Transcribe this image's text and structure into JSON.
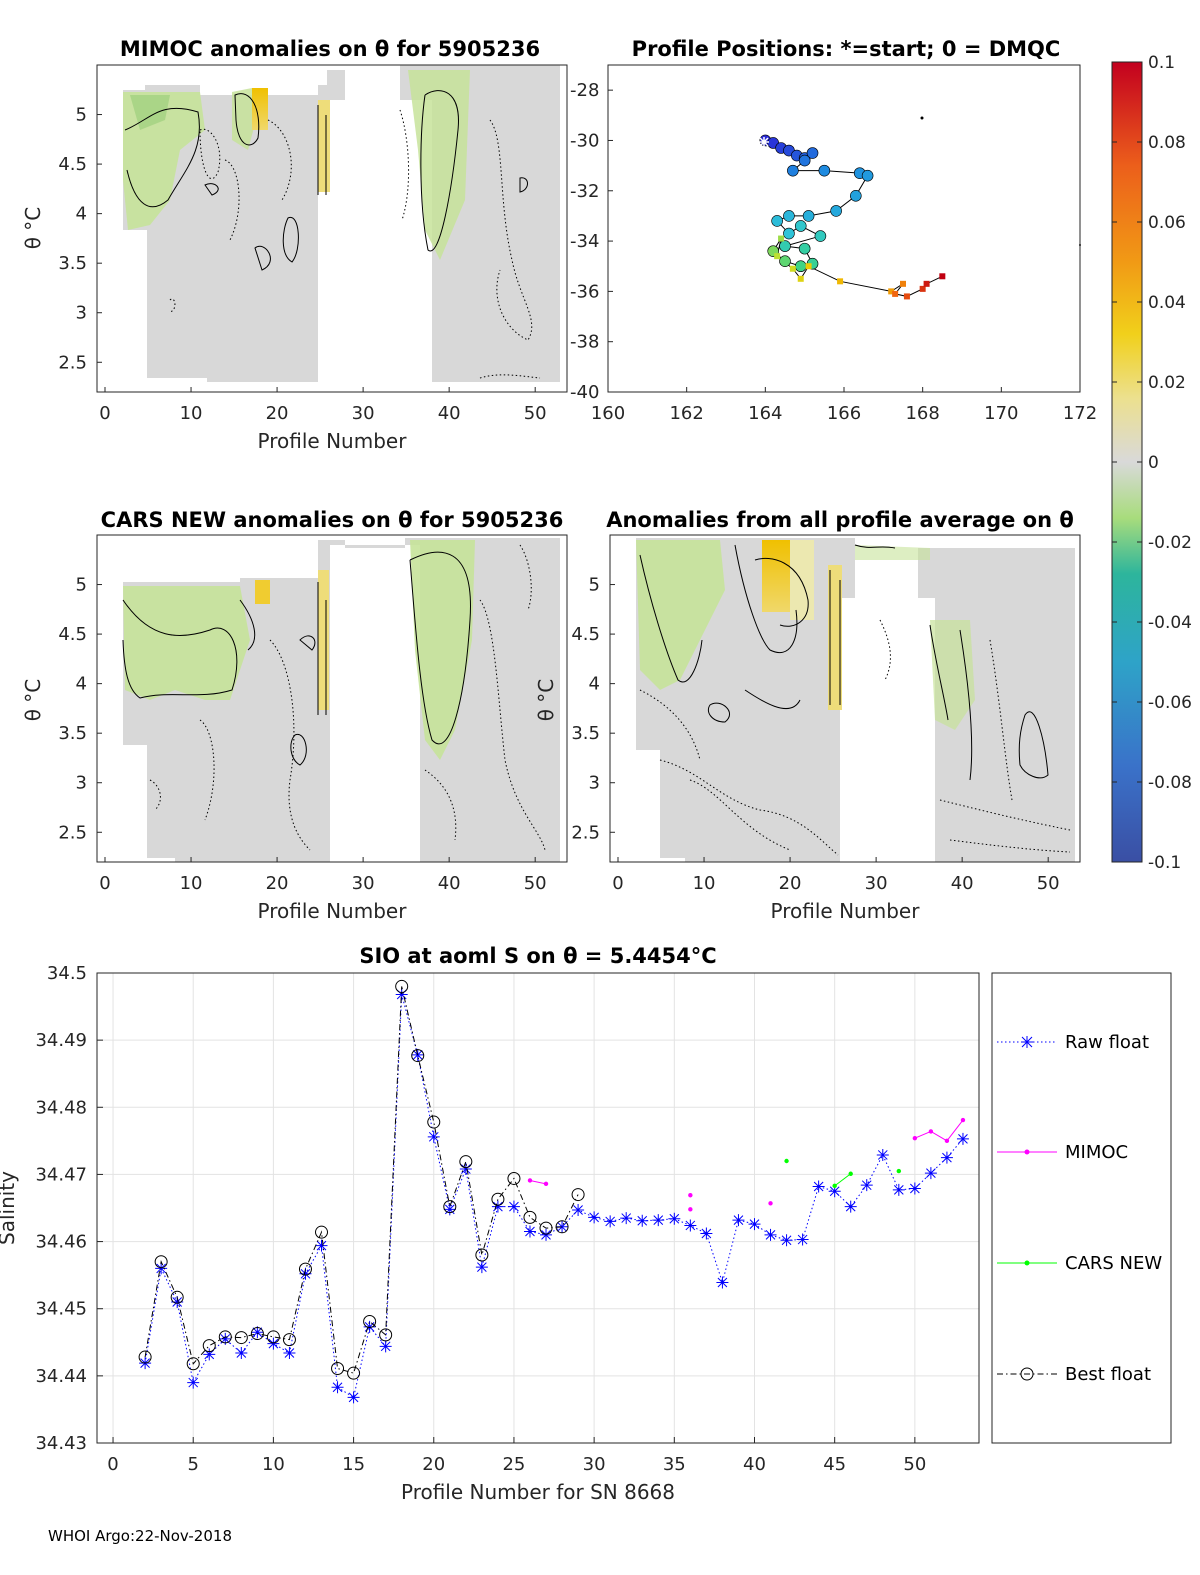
{
  "footer": "WHOI Argo:22-Nov-2018",
  "colorbar": {
    "ticks": [
      "0.1",
      "0.08",
      "0.06",
      "0.04",
      "0.02",
      "0",
      "-0.02",
      "-0.04",
      "-0.06",
      "-0.08",
      "-0.1"
    ],
    "range": [
      -0.1,
      0.1
    ]
  },
  "chart_data": [
    {
      "type": "heatmap",
      "title": "MIMOC anomalies on θ  for 5905236",
      "xlabel": "Profile Number",
      "ylabel": "θ °C",
      "xlim": [
        0,
        53
      ],
      "ylim": [
        2.2,
        5.5
      ],
      "xticks": [
        "0",
        "10",
        "20",
        "30",
        "40",
        "50"
      ],
      "yticks": [
        "2.5",
        "3",
        "3.5",
        "4",
        "4.5",
        "5"
      ],
      "coverage_note": "no data for profiles ~26-38"
    },
    {
      "type": "scatter",
      "title": "Profile Positions: *=start; 0 = DMQC",
      "xlim": [
        160,
        172
      ],
      "ylim": [
        -40,
        -27
      ],
      "xticks": [
        "160",
        "162",
        "164",
        "166",
        "168",
        "170",
        "172"
      ],
      "yticks": [
        "-28",
        "-30",
        "-32",
        "-34",
        "-36",
        "-38",
        "-40"
      ],
      "track": [
        [
          164.0,
          -30.0
        ],
        [
          164.2,
          -30.1
        ],
        [
          164.4,
          -30.3
        ],
        [
          164.6,
          -30.4
        ],
        [
          164.8,
          -30.6
        ],
        [
          165.0,
          -30.7
        ],
        [
          165.2,
          -30.5
        ],
        [
          165.0,
          -30.8
        ],
        [
          164.7,
          -31.2
        ],
        [
          165.5,
          -31.2
        ],
        [
          166.4,
          -31.3
        ],
        [
          166.6,
          -31.4
        ],
        [
          166.3,
          -32.2
        ],
        [
          165.8,
          -32.8
        ],
        [
          165.1,
          -33.0
        ],
        [
          164.6,
          -33.0
        ],
        [
          164.3,
          -33.2
        ],
        [
          164.6,
          -33.7
        ],
        [
          164.9,
          -33.4
        ],
        [
          165.4,
          -33.8
        ],
        [
          164.5,
          -34.2
        ],
        [
          165.0,
          -34.3
        ],
        [
          165.2,
          -34.9
        ],
        [
          164.9,
          -35.0
        ],
        [
          164.5,
          -34.8
        ],
        [
          164.2,
          -34.4
        ],
        [
          164.4,
          -33.9
        ],
        [
          164.3,
          -34.6
        ],
        [
          164.7,
          -35.1
        ],
        [
          164.9,
          -35.5
        ],
        [
          165.1,
          -35.0
        ],
        [
          165.9,
          -35.6
        ],
        [
          167.2,
          -36.0
        ],
        [
          167.5,
          -35.7
        ],
        [
          167.3,
          -36.1
        ],
        [
          167.6,
          -36.2
        ],
        [
          168.0,
          -35.9
        ],
        [
          168.1,
          -35.7
        ],
        [
          168.5,
          -35.4
        ]
      ]
    },
    {
      "type": "heatmap",
      "title": "CARS NEW anomalies on θ for 5905236",
      "xlabel": "Profile Number",
      "ylabel": "θ °C",
      "xlim": [
        0,
        53
      ],
      "ylim": [
        2.2,
        5.5
      ],
      "xticks": [
        "0",
        "10",
        "20",
        "30",
        "40",
        "50"
      ],
      "yticks": [
        "2.5",
        "3",
        "3.5",
        "4",
        "4.5",
        "5"
      ]
    },
    {
      "type": "heatmap",
      "title": "Anomalies from all profile average on θ",
      "xlabel": "Profile Number",
      "ylabel": "θ °C",
      "xlim": [
        0,
        53
      ],
      "ylim": [
        2.2,
        5.5
      ],
      "xticks": [
        "0",
        "10",
        "20",
        "30",
        "40",
        "50"
      ],
      "yticks": [
        "2.5",
        "3",
        "3.5",
        "4",
        "4.5",
        "5"
      ]
    },
    {
      "type": "line",
      "title": "SIO at aoml S on θ = 5.4454°C",
      "xlabel": "Profile Number for SN 8668",
      "ylabel": "Salinity",
      "xlim": [
        -1,
        54
      ],
      "ylim": [
        34.43,
        34.5
      ],
      "xticks": [
        "0",
        "5",
        "10",
        "15",
        "20",
        "25",
        "30",
        "35",
        "40",
        "45",
        "50"
      ],
      "yticks": [
        "34.5",
        "34.49",
        "34.48",
        "34.47",
        "34.46",
        "34.45",
        "34.44",
        "34.43"
      ],
      "legend": [
        "Raw float",
        "MIMOC",
        "CARS NEW",
        "Best float"
      ],
      "series": [
        {
          "name": "Raw float",
          "color": "#0000ff",
          "x": [
            2,
            3,
            4,
            5,
            6,
            7,
            8,
            9,
            10,
            11,
            12,
            13,
            14,
            15,
            16,
            17,
            18,
            19,
            20,
            21,
            22,
            23,
            24,
            25,
            26,
            27,
            28,
            29,
            30,
            31,
            32,
            33,
            34,
            35,
            36,
            37,
            38,
            39,
            40,
            41,
            42,
            43,
            44,
            45,
            46,
            47,
            48,
            49,
            50,
            51,
            52,
            53
          ],
          "values": [
            34.4419,
            34.456,
            34.451,
            34.439,
            34.4432,
            34.4455,
            34.4434,
            34.4465,
            34.4448,
            34.4434,
            34.4552,
            34.4594,
            34.4383,
            34.4368,
            34.4473,
            34.4444,
            34.4968,
            34.4878,
            34.4756,
            34.4648,
            34.4708,
            34.4562,
            34.4652,
            34.4652,
            34.4615,
            34.461,
            34.4622,
            34.4647,
            34.4636,
            34.463,
            34.4635,
            34.4631,
            34.4632,
            34.4634,
            34.4624,
            34.4612,
            34.4539,
            34.4632,
            34.4626,
            34.461,
            34.4602,
            34.4603,
            34.4682,
            34.4675,
            34.4652,
            34.4684,
            34.4729,
            34.4677,
            34.4679,
            34.4702,
            34.4725,
            34.4753
          ]
        },
        {
          "name": "MIMOC",
          "color": "#ff00ff",
          "x": [
            26,
            27,
            36,
            36,
            41,
            50,
            51,
            52,
            53
          ],
          "values": [
            34.4691,
            34.4686,
            34.4669,
            34.4648,
            34.4657,
            34.4754,
            34.4764,
            34.475,
            34.4781
          ]
        },
        {
          "name": "CARS NEW",
          "color": "#00ff00",
          "x": [
            42,
            45,
            46,
            49
          ],
          "values": [
            34.472,
            34.4683,
            34.4701,
            34.4705
          ]
        },
        {
          "name": "Best float",
          "color": "#000000",
          "x": [
            2,
            3,
            4,
            5,
            6,
            7,
            8,
            9,
            10,
            11,
            12,
            13,
            14,
            15,
            16,
            17,
            18,
            19,
            20,
            21,
            22,
            23,
            24,
            25,
            26,
            27,
            28,
            29
          ],
          "values": [
            34.4428,
            34.457,
            34.4517,
            34.4418,
            34.4445,
            34.4458,
            34.4457,
            34.4463,
            34.4458,
            34.4454,
            34.4559,
            34.4614,
            34.4411,
            34.4404,
            34.4481,
            34.4461,
            34.498,
            34.4877,
            34.4778,
            34.4652,
            34.4719,
            34.458,
            34.4663,
            34.4694,
            34.4636,
            34.462,
            34.4622,
            34.467
          ]
        }
      ]
    }
  ]
}
